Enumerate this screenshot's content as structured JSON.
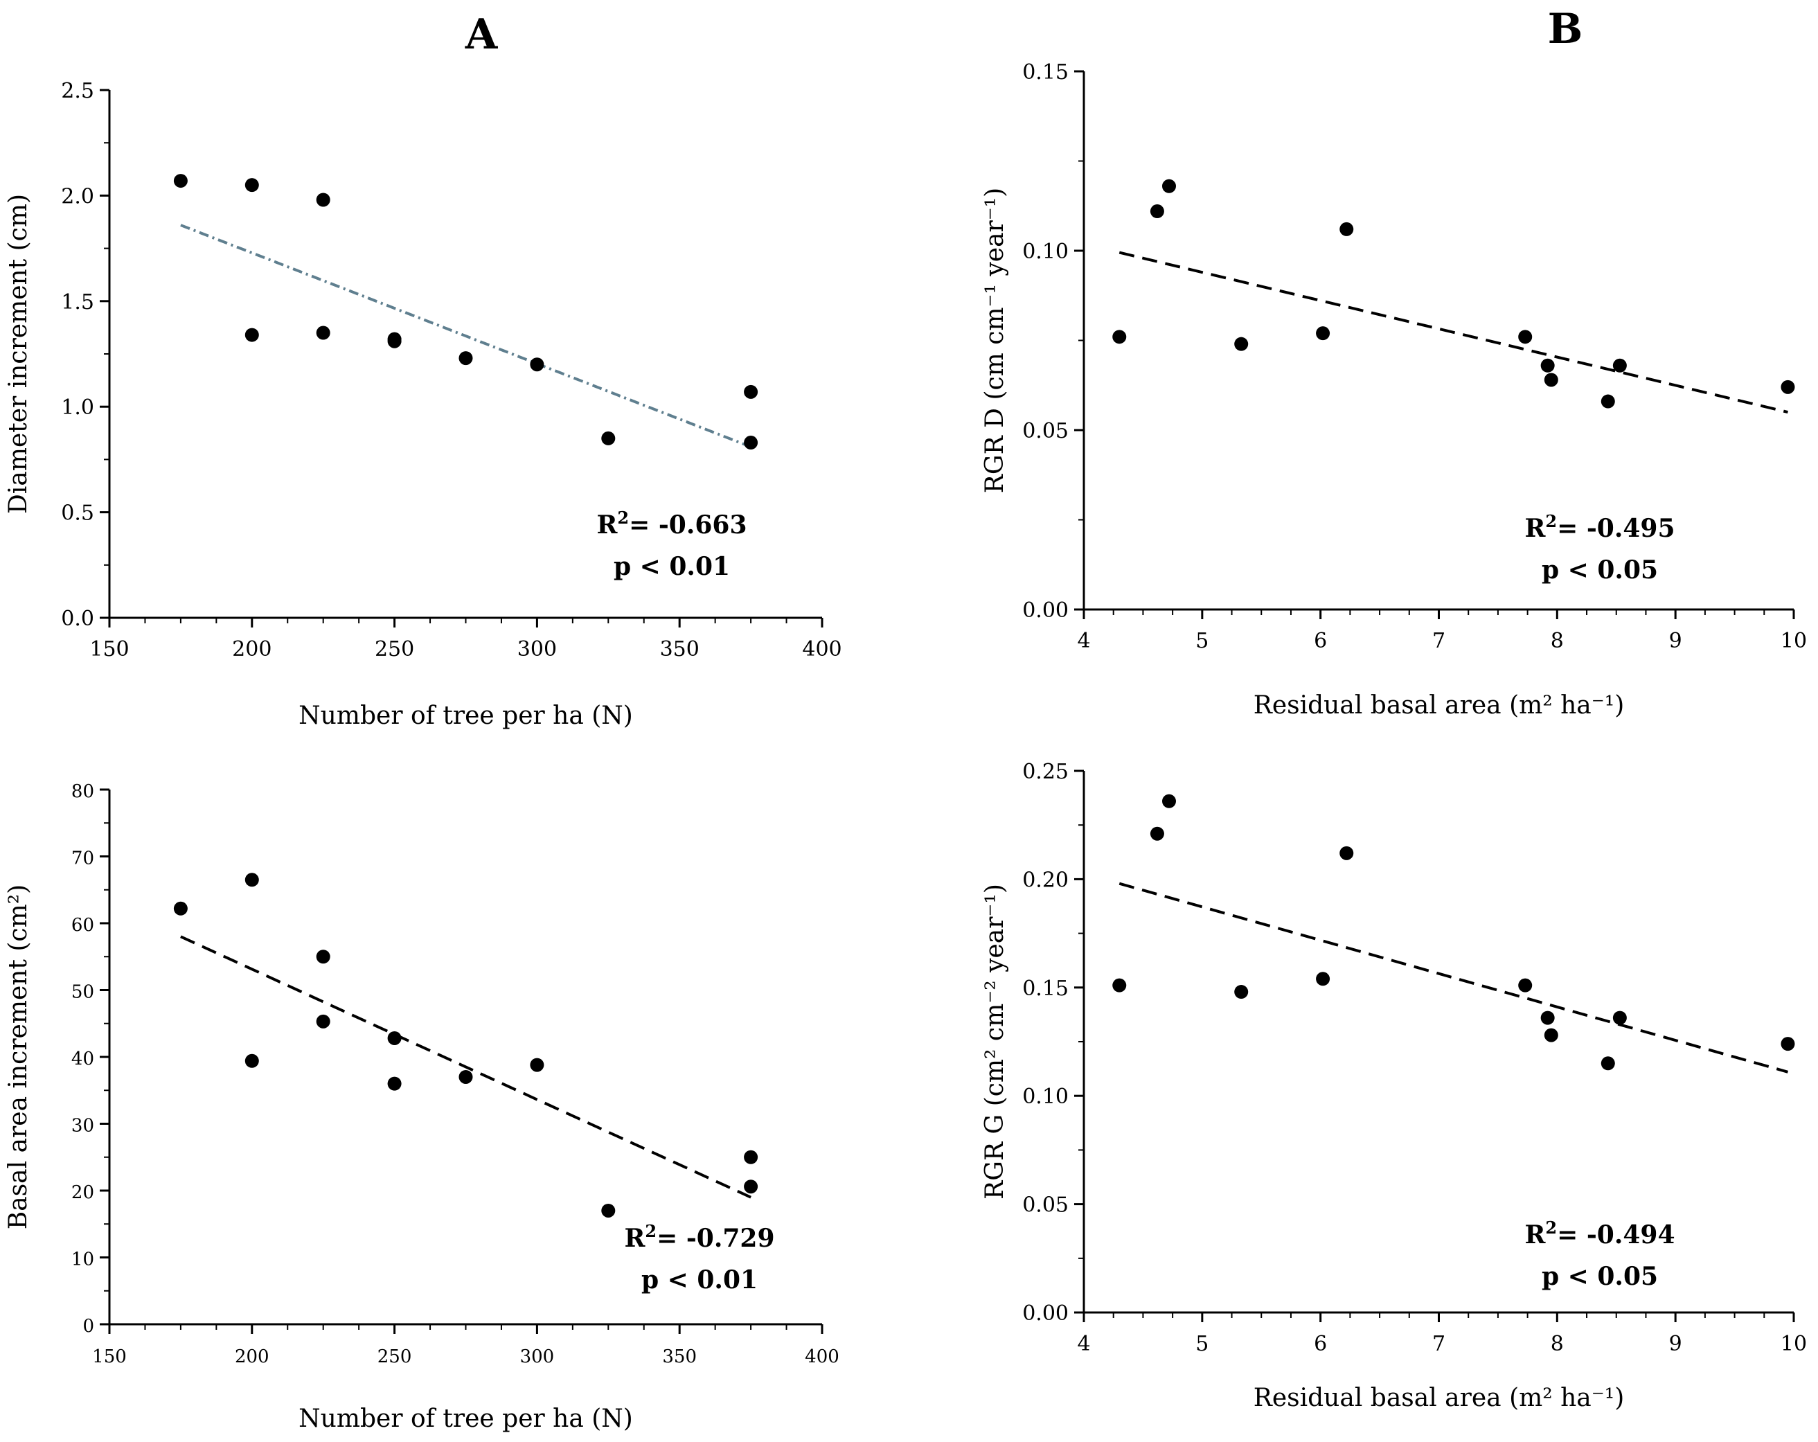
{
  "panel_titles": [
    "A",
    "B"
  ],
  "chart_data": [
    {
      "type": "scatter",
      "title": "",
      "xlabel": "Number of tree per ha (N)",
      "ylabel": "Diameter increment (cm)",
      "xlim": [
        150,
        400
      ],
      "ylim": [
        0,
        2.5
      ],
      "xticks": [
        150,
        200,
        250,
        300,
        350,
        400
      ],
      "yticks": [
        0.0,
        0.5,
        1.0,
        1.5,
        2.0,
        2.5
      ],
      "ytick_decimals": 1,
      "grid": false,
      "points": [
        {
          "x": 175,
          "y": 2.07
        },
        {
          "x": 200,
          "y": 2.05
        },
        {
          "x": 225,
          "y": 1.98
        },
        {
          "x": 200,
          "y": 1.34
        },
        {
          "x": 225,
          "y": 1.35
        },
        {
          "x": 250,
          "y": 1.32
        },
        {
          "x": 250,
          "y": 1.31
        },
        {
          "x": 275,
          "y": 1.23
        },
        {
          "x": 300,
          "y": 1.2
        },
        {
          "x": 325,
          "y": 0.85
        },
        {
          "x": 375,
          "y": 1.07
        },
        {
          "x": 375,
          "y": 0.83
        }
      ],
      "trendline": {
        "x": [
          175,
          375
        ],
        "y": [
          1.86,
          0.81
        ],
        "style": "dash-dot",
        "color": "#5f7f8f"
      },
      "annotation": {
        "r2_prefix": "R",
        "r2_sup": "2",
        "r2_value": "= -0.663",
        "p_text": "p < 0.01"
      }
    },
    {
      "type": "scatter",
      "title": "",
      "xlabel": "Residual  basal area (m² ha⁻¹)",
      "ylabel": "RGR D (cm cm⁻¹ year⁻¹)",
      "xlim": [
        4,
        10
      ],
      "ylim": [
        0,
        0.15
      ],
      "xticks": [
        4,
        5,
        6,
        7,
        8,
        9,
        10
      ],
      "yticks": [
        0.0,
        0.05,
        0.1,
        0.15
      ],
      "ytick_decimals": 2,
      "grid": false,
      "points": [
        {
          "x": 4.3,
          "y": 0.076
        },
        {
          "x": 4.62,
          "y": 0.111
        },
        {
          "x": 4.72,
          "y": 0.118
        },
        {
          "x": 5.33,
          "y": 0.074
        },
        {
          "x": 6.02,
          "y": 0.077
        },
        {
          "x": 6.22,
          "y": 0.106
        },
        {
          "x": 7.73,
          "y": 0.076
        },
        {
          "x": 7.92,
          "y": 0.068
        },
        {
          "x": 7.95,
          "y": 0.064
        },
        {
          "x": 8.43,
          "y": 0.058
        },
        {
          "x": 8.53,
          "y": 0.068
        },
        {
          "x": 9.95,
          "y": 0.062
        }
      ],
      "trendline": {
        "x": [
          4.3,
          9.95
        ],
        "y": [
          0.0995,
          0.055
        ],
        "style": "dashed",
        "color": "#000000"
      },
      "annotation": {
        "r2_prefix": "R",
        "r2_sup": "2",
        "r2_value": "= -0.495",
        "p_text": "p < 0.05"
      }
    },
    {
      "type": "scatter",
      "title": "",
      "xlabel": "Number of tree per ha (N)",
      "ylabel": "Basal area increment  (cm²)",
      "xlim": [
        150,
        400
      ],
      "ylim": [
        0,
        80
      ],
      "xticks": [
        150,
        200,
        250,
        300,
        350,
        400
      ],
      "yticks": [
        0,
        10,
        20,
        30,
        40,
        50,
        60,
        70,
        80
      ],
      "ytick_decimals": 0,
      "grid": false,
      "points": [
        {
          "x": 175,
          "y": 62.2
        },
        {
          "x": 200,
          "y": 66.5
        },
        {
          "x": 200,
          "y": 39.4
        },
        {
          "x": 225,
          "y": 55.0
        },
        {
          "x": 225,
          "y": 45.3
        },
        {
          "x": 250,
          "y": 42.8
        },
        {
          "x": 250,
          "y": 36.0
        },
        {
          "x": 275,
          "y": 37.0
        },
        {
          "x": 300,
          "y": 38.8
        },
        {
          "x": 325,
          "y": 17.0
        },
        {
          "x": 375,
          "y": 25.0
        },
        {
          "x": 375,
          "y": 20.6
        }
      ],
      "trendline": {
        "x": [
          175,
          375
        ],
        "y": [
          58.0,
          19.0
        ],
        "style": "dashed",
        "color": "#000000"
      },
      "annotation": {
        "r2_prefix": "R",
        "r2_sup": "2",
        "r2_value": "= -0.729",
        "p_text": "p < 0.01"
      }
    },
    {
      "type": "scatter",
      "title": "",
      "xlabel": "Residual  basal area (m² ha⁻¹)",
      "ylabel": "RGR G (cm² cm⁻² year⁻¹)",
      "xlim": [
        4,
        10
      ],
      "ylim": [
        0,
        0.25
      ],
      "xticks": [
        4,
        5,
        6,
        7,
        8,
        9,
        10
      ],
      "yticks": [
        0.0,
        0.05,
        0.1,
        0.15,
        0.2,
        0.25
      ],
      "ytick_decimals": 2,
      "grid": false,
      "points": [
        {
          "x": 4.3,
          "y": 0.151
        },
        {
          "x": 4.62,
          "y": 0.221
        },
        {
          "x": 4.72,
          "y": 0.236
        },
        {
          "x": 5.33,
          "y": 0.148
        },
        {
          "x": 6.02,
          "y": 0.154
        },
        {
          "x": 6.22,
          "y": 0.212
        },
        {
          "x": 7.73,
          "y": 0.151
        },
        {
          "x": 7.92,
          "y": 0.136
        },
        {
          "x": 7.95,
          "y": 0.128
        },
        {
          "x": 8.43,
          "y": 0.115
        },
        {
          "x": 8.53,
          "y": 0.136
        },
        {
          "x": 9.95,
          "y": 0.124
        }
      ],
      "trendline": {
        "x": [
          4.3,
          9.95
        ],
        "y": [
          0.198,
          0.111
        ],
        "style": "dashed",
        "color": "#000000"
      },
      "annotation": {
        "r2_prefix": "R",
        "r2_sup": "2",
        "r2_value": "= -0.494",
        "p_text": "p < 0.05"
      }
    }
  ]
}
